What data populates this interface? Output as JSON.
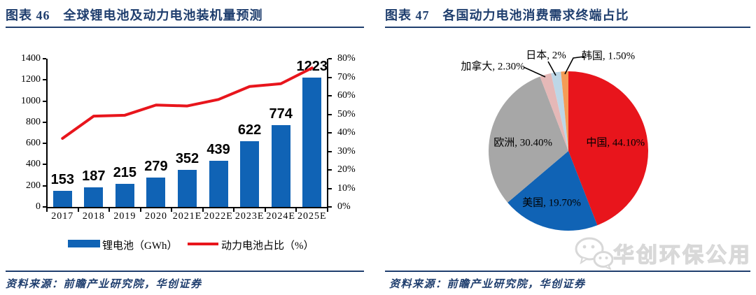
{
  "panels": [
    {
      "figure_label": "图表 46",
      "title": "图表 46　全球锂电池及动力电池装机量预测",
      "source": "资料来源：前瞻产业研究院，华创证券"
    },
    {
      "figure_label": "图表 47",
      "title": "图表 47　各国动力电池消费需求终端占比",
      "source": "资料来源：前瞻产业研究院，华创证券"
    }
  ],
  "watermark": {
    "icon": "wechat-icon",
    "text": "华创环保公用"
  },
  "colors": {
    "navy": "#1F3E6E",
    "bar_blue": "#1063B5",
    "line_red": "#E8151C",
    "watermark_gray": "#D8D8D8"
  },
  "chart_data": [
    {
      "type": "bar",
      "subtype": "bar-with-line-dual-axis",
      "categories": [
        "2017",
        "2018",
        "2019",
        "2020",
        "2021E",
        "2022E",
        "2023E",
        "2024E",
        "2025E"
      ],
      "series": [
        {
          "name": "锂电池（GWh）",
          "kind": "bar",
          "axis": "left",
          "color": "#1063B5",
          "values": [
            153,
            187,
            215,
            279,
            352,
            439,
            622,
            774,
            1223
          ]
        },
        {
          "name": "动力电池占比（%）",
          "kind": "line",
          "axis": "right",
          "color": "#E8151C",
          "values": [
            37,
            49,
            49.5,
            55,
            54.5,
            58,
            65,
            66.5,
            75
          ]
        }
      ],
      "bar_value_labels": [
        "153",
        "187",
        "215",
        "279",
        "352",
        "439",
        "622",
        "774",
        "1223"
      ],
      "left_axis": {
        "min": 0,
        "max": 1400,
        "step": 200,
        "ticks": [
          "0",
          "200",
          "400",
          "600",
          "800",
          "1000",
          "1200",
          "1400"
        ]
      },
      "right_axis": {
        "min": 0,
        "max": 80,
        "step": 10,
        "ticks": [
          "0%",
          "10%",
          "20%",
          "30%",
          "40%",
          "50%",
          "60%",
          "70%",
          "80%"
        ]
      },
      "legend_position": "bottom",
      "grid": false
    },
    {
      "type": "pie",
      "start_angle": "top",
      "direction": "clockwise",
      "slices": [
        {
          "key": "china",
          "label": "中国",
          "value": 44.1,
          "display": "中国, 44.10%",
          "color": "#E8151C",
          "label_placement": "inside"
        },
        {
          "key": "usa",
          "label": "美国",
          "value": 19.7,
          "display": "美国, 19.70%",
          "color": "#1063B5",
          "label_placement": "inside"
        },
        {
          "key": "europe",
          "label": "欧洲",
          "value": 30.4,
          "display": "欧洲, 30.40%",
          "color": "#A7A7A7",
          "label_placement": "inside"
        },
        {
          "key": "canada",
          "label": "加拿大",
          "value": 2.3,
          "display": "加拿大, 2.30%",
          "color": "#E5B8B7",
          "label_placement": "outside"
        },
        {
          "key": "japan",
          "label": "日本",
          "value": 2.0,
          "display": "日本, 2%",
          "color": "#BDD7E7",
          "label_placement": "outside"
        },
        {
          "key": "korea",
          "label": "韩国",
          "value": 1.5,
          "display": "韩国, 1.50%",
          "color": "#F59C56",
          "label_placement": "outside"
        }
      ]
    }
  ]
}
